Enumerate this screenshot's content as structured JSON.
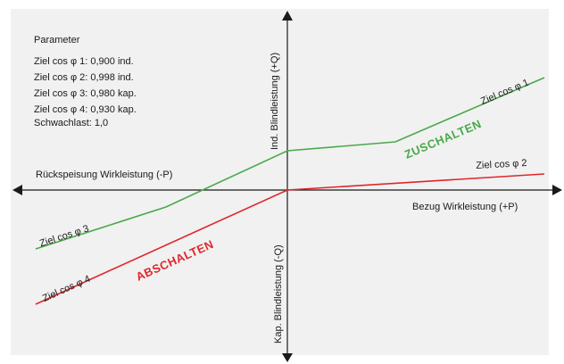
{
  "parameters": {
    "title": "Parameter",
    "lines": [
      "Ziel cos φ 1: 0,900 ind.",
      "Ziel cos φ 2: 0,998 ind.",
      "Ziel cos φ 3: 0,980 kap.",
      "Ziel cos φ 4: 0,930 kap.",
      "Schwachlast: 1,0"
    ]
  },
  "axes": {
    "neg_p": "Rückspeisung Wirkleistung (-P)",
    "pos_p": "Bezug Wirkleistung (+P)",
    "pos_q": "Ind. Blindleistung (+Q)",
    "neg_q": "Kap. Blindleistung (-Q)"
  },
  "curves": {
    "phi1": "Ziel cos φ 1",
    "phi2": "Ziel cos φ 2",
    "phi3": "Ziel cos φ 3",
    "phi4": "Ziel cos φ 4"
  },
  "regions": {
    "on": "ZUSCHALTEN",
    "off": "ABSCHALTEN"
  },
  "colors": {
    "on": "#4aa84a",
    "off": "#e0262b",
    "axis": "#1a1a1a",
    "panel": "#f1f1f1"
  }
}
